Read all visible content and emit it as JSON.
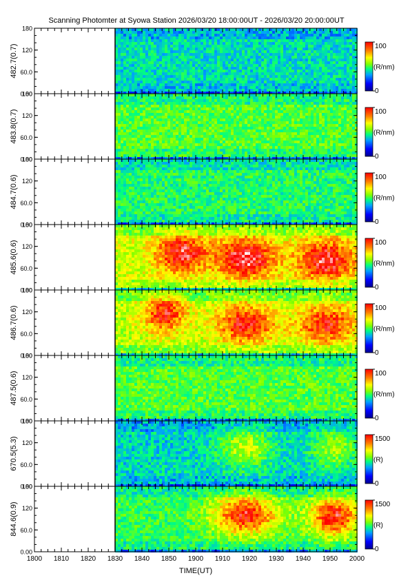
{
  "title": "Scanning Photomter at Syowa Station  2026/03/20 18:00:00UT - 2026/03/20 20:00:00UT",
  "chart_data": {
    "type": "heatmap",
    "xlabel": "TIME(UT)",
    "x_ticks": [
      "1800",
      "1810",
      "1820",
      "1830",
      "1840",
      "1850",
      "1900",
      "1910",
      "1920",
      "1930",
      "1940",
      "1950",
      "2000"
    ],
    "x_range": [
      "18:00",
      "20:00"
    ],
    "data_start": "18:30",
    "y_ticks": [
      "0.00",
      "60.0",
      "120",
      "180"
    ],
    "ylim": [
      0,
      180
    ],
    "colormap": [
      "#000090",
      "#0000ff",
      "#00a0ff",
      "#00ff80",
      "#80ff00",
      "#ffff00",
      "#ff8000",
      "#ff0000",
      "#ffffff"
    ],
    "panels": [
      {
        "label": "482.7(0.7)",
        "unit": "(R/nm)",
        "cmax": "100",
        "cmin": "0",
        "intensity_level": 0.33,
        "bands": []
      },
      {
        "label": "483.8(0.7)",
        "unit": "(R/nm)",
        "cmax": "100",
        "cmin": "0",
        "intensity_level": 0.45,
        "bands": []
      },
      {
        "label": "484.7(0.6)",
        "unit": "(R/nm)",
        "cmax": "100",
        "cmin": "0",
        "intensity_level": 0.4,
        "bands": []
      },
      {
        "label": "485.6(0.6)",
        "unit": "(R/nm)",
        "cmax": "100",
        "cmin": "0",
        "intensity_level": 0.58,
        "bands": [
          {
            "t": 18.9,
            "y": 105,
            "amp": 0.32,
            "w": 0.35
          },
          {
            "t": 19.3,
            "y": 90,
            "amp": 0.35,
            "w": 0.4
          },
          {
            "t": 19.8,
            "y": 85,
            "amp": 0.33,
            "w": 0.4
          }
        ]
      },
      {
        "label": "486.7(0.6)",
        "unit": "(R/nm)",
        "cmax": "100",
        "cmin": "0",
        "intensity_level": 0.55,
        "bands": [
          {
            "t": 18.8,
            "y": 120,
            "amp": 0.3,
            "w": 0.3
          },
          {
            "t": 19.3,
            "y": 90,
            "amp": 0.32,
            "w": 0.4
          },
          {
            "t": 19.8,
            "y": 90,
            "amp": 0.3,
            "w": 0.4
          }
        ]
      },
      {
        "label": "487.5(0.6)",
        "unit": "(R/nm)",
        "cmax": "100",
        "cmin": "0",
        "intensity_level": 0.45,
        "bands": []
      },
      {
        "label": "670.5(5.3)",
        "unit": "(R)",
        "cmax": "1500",
        "cmin": "0",
        "intensity_level": 0.32,
        "bands": [
          {
            "t": 19.3,
            "y": 110,
            "amp": 0.25,
            "w": 0.35
          },
          {
            "t": 19.85,
            "y": 110,
            "amp": 0.22,
            "w": 0.3
          }
        ]
      },
      {
        "label": "844.6(0.9)",
        "unit": "(R)",
        "cmax": "1500",
        "cmin": "0",
        "intensity_level": 0.42,
        "bands": [
          {
            "t": 19.3,
            "y": 105,
            "amp": 0.45,
            "w": 0.45
          },
          {
            "t": 19.85,
            "y": 100,
            "amp": 0.45,
            "w": 0.35
          }
        ]
      }
    ]
  }
}
